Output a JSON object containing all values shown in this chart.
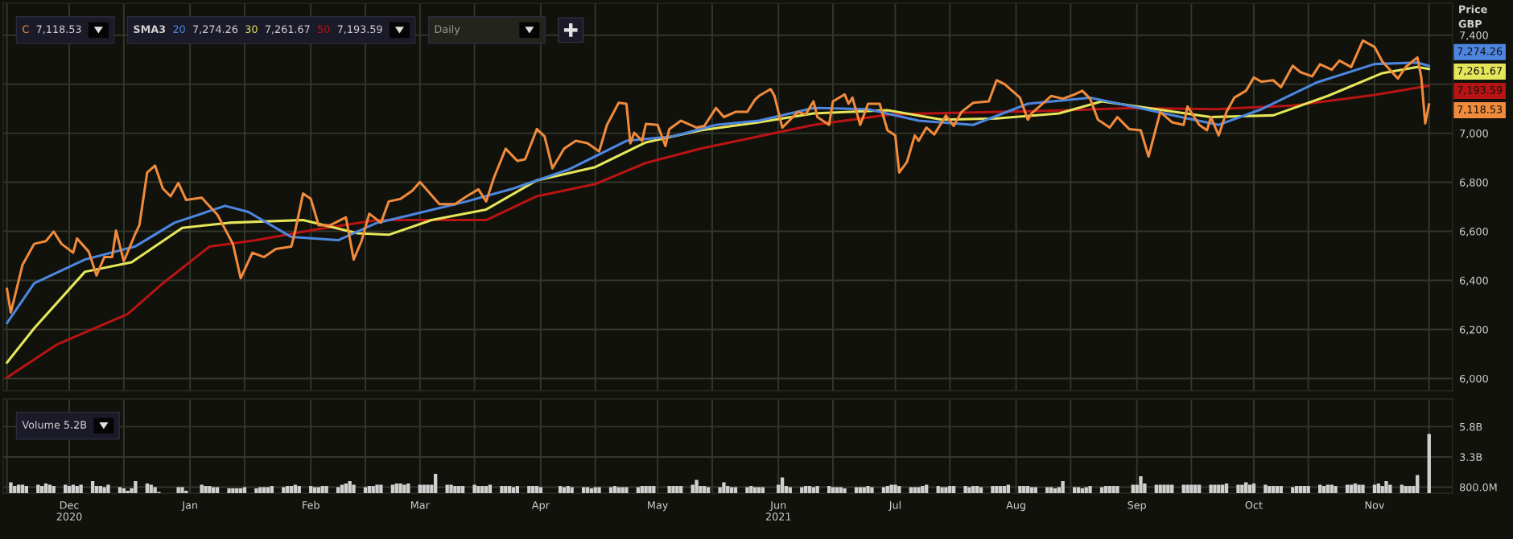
{
  "chart_data": [
    {
      "type": "line",
      "ylabel": "Price\nGBP",
      "legend_title": "SMA3",
      "legend": "top left",
      "line_style": "solid",
      "grid": true,
      "tick_labels": "y",
      "annotations": [
        "Daily",
        "7,118.53",
        "7,274.26",
        "7,261.67",
        "7,193.59"
      ],
      "xlim": [
        "2020-11-14",
        "2021-11-21"
      ],
      "xticks": [
        {
          "value": "2020-11-15",
          "label": null
        },
        {
          "value": "2020-12-01",
          "label": null
        },
        {
          "value": "2020-12-15",
          "label": null
        },
        {
          "value": "2021-01-01",
          "label": null
        },
        {
          "value": "2021-01-15",
          "label": null
        },
        {
          "value": "2021-02-01",
          "label": null
        },
        {
          "value": "2021-02-15",
          "label": null
        },
        {
          "value": "2021-03-01",
          "label": null
        },
        {
          "value": "2021-03-15",
          "label": null
        },
        {
          "value": "2021-04-01",
          "label": null
        },
        {
          "value": "2021-04-15",
          "label": null
        },
        {
          "value": "2021-05-01",
          "label": null
        },
        {
          "value": "2021-05-15",
          "label": null
        },
        {
          "value": "2021-06-01",
          "label": null
        },
        {
          "value": "2021-06-15",
          "label": null
        },
        {
          "value": "2021-07-01",
          "label": null
        },
        {
          "value": "2021-07-15",
          "label": null
        },
        {
          "value": "2021-08-01",
          "label": null
        },
        {
          "value": "2021-08-15",
          "label": null
        },
        {
          "value": "2021-09-01",
          "label": null
        },
        {
          "value": "2021-09-15",
          "label": null
        },
        {
          "value": "2021-10-01",
          "label": null
        },
        {
          "value": "2021-10-15",
          "label": null
        },
        {
          "value": "2021-11-01",
          "label": null
        },
        {
          "value": "2021-11-15",
          "label": null
        }
      ],
      "ylim": [
        5950,
        7530
      ],
      "yticks": [
        {
          "value": 6000,
          "label": "6,000"
        },
        {
          "value": 6200,
          "label": "6,200"
        },
        {
          "value": 6400,
          "label": "6,400"
        },
        {
          "value": 6600,
          "label": "6,600"
        },
        {
          "value": 6800,
          "label": "6,800"
        },
        {
          "value": 7000,
          "label": "7,000"
        },
        {
          "value": 7200,
          "label": null
        },
        {
          "value": 7400,
          "label": "7,400"
        }
      ],
      "series": [
        {
          "name": "C",
          "color": "#f08a3c",
          "x": [
            "2020-11-15",
            "2020-11-16",
            "2020-11-19",
            "2020-11-22",
            "2020-11-25",
            "2020-11-27",
            "2020-11-29",
            "2020-12-02",
            "2020-12-03",
            "2020-12-06",
            "2020-12-08",
            "2020-12-10",
            "2020-12-12",
            "2020-12-13",
            "2020-12-15",
            "2020-12-18",
            "2020-12-19",
            "2020-12-21",
            "2020-12-23",
            "2020-12-25",
            "2020-12-27",
            "2020-12-29",
            "2020-12-31",
            "2021-01-04",
            "2021-01-08",
            "2021-01-12",
            "2021-01-14",
            "2021-01-17",
            "2021-01-20",
            "2021-01-23",
            "2021-01-27",
            "2021-01-28",
            "2021-01-30",
            "2021-02-01",
            "2021-02-03",
            "2021-02-06",
            "2021-02-10",
            "2021-02-12",
            "2021-02-14",
            "2021-02-16",
            "2021-02-19",
            "2021-02-21",
            "2021-02-24",
            "2021-02-27",
            "2021-03-01",
            "2021-03-03",
            "2021-03-06",
            "2021-03-10",
            "2021-03-13",
            "2021-03-16",
            "2021-03-18",
            "2021-03-20",
            "2021-03-23",
            "2021-03-26",
            "2021-03-28",
            "2021-03-31",
            "2021-04-02",
            "2021-04-04",
            "2021-04-07",
            "2021-04-10",
            "2021-04-13",
            "2021-04-16",
            "2021-04-18",
            "2021-04-21",
            "2021-04-23",
            "2021-04-24",
            "2021-04-25",
            "2021-04-27",
            "2021-04-28",
            "2021-05-01",
            "2021-05-03",
            "2021-05-04",
            "2021-05-07",
            "2021-05-11",
            "2021-05-13",
            "2021-05-16",
            "2021-05-18",
            "2021-05-21",
            "2021-05-24",
            "2021-05-26",
            "2021-05-27",
            "2021-05-30",
            "2021-05-31",
            "2021-06-02",
            "2021-06-06",
            "2021-06-08",
            "2021-06-10",
            "2021-06-11",
            "2021-06-14",
            "2021-06-15",
            "2021-06-18",
            "2021-06-19",
            "2021-06-20",
            "2021-06-22",
            "2021-06-24",
            "2021-06-27",
            "2021-06-29",
            "2021-07-01",
            "2021-07-02",
            "2021-07-04",
            "2021-07-06",
            "2021-07-07",
            "2021-07-09",
            "2021-07-11",
            "2021-07-14",
            "2021-07-16",
            "2021-07-18",
            "2021-07-21",
            "2021-07-25",
            "2021-07-27",
            "2021-07-29",
            "2021-07-31",
            "2021-08-02",
            "2021-08-04",
            "2021-08-05",
            "2021-08-07",
            "2021-08-10",
            "2021-08-13",
            "2021-08-16",
            "2021-08-18",
            "2021-08-20",
            "2021-08-22",
            "2021-08-25",
            "2021-08-27",
            "2021-08-30",
            "2021-09-02",
            "2021-09-04",
            "2021-09-07",
            "2021-09-10",
            "2021-09-13",
            "2021-09-14",
            "2021-09-17",
            "2021-09-19",
            "2021-09-20",
            "2021-09-22",
            "2021-09-24",
            "2021-09-26",
            "2021-09-29",
            "2021-10-01",
            "2021-10-03",
            "2021-10-06",
            "2021-10-08",
            "2021-10-11",
            "2021-10-13",
            "2021-10-16",
            "2021-10-18",
            "2021-10-21",
            "2021-10-23",
            "2021-10-26",
            "2021-10-29",
            "2021-11-01",
            "2021-11-03",
            "2021-11-07",
            "2021-11-09",
            "2021-11-12",
            "2021-11-13",
            "2021-11-14",
            "2021-11-15"
          ],
          "values": [
            6366,
            6269,
            6463,
            6549,
            6560,
            6599,
            6549,
            6513,
            6571,
            6517,
            6420,
            6495,
            6495,
            6603,
            6478,
            6592,
            6625,
            6840,
            6868,
            6775,
            6743,
            6797,
            6728,
            6737,
            6668,
            6549,
            6409,
            6513,
            6495,
            6528,
            6538,
            6603,
            6754,
            6732,
            6625,
            6625,
            6657,
            6485,
            6560,
            6672,
            6635,
            6722,
            6732,
            6765,
            6801,
            6765,
            6711,
            6711,
            6743,
            6771,
            6722,
            6819,
            6937,
            6887,
            6894,
            7017,
            6987,
            6857,
            6937,
            6969,
            6959,
            6926,
            7034,
            7124,
            7120,
            6959,
            7002,
            6969,
            7038,
            7034,
            6948,
            7017,
            7051,
            7023,
            7030,
            7103,
            7066,
            7087,
            7087,
            7137,
            7152,
            7180,
            7152,
            7023,
            7087,
            7077,
            7130,
            7066,
            7034,
            7130,
            7158,
            7120,
            7145,
            7034,
            7120,
            7120,
            7012,
            6991,
            6840,
            6883,
            6991,
            6969,
            7023,
            6995,
            7072,
            7030,
            7087,
            7124,
            7130,
            7216,
            7201,
            7173,
            7145,
            7055,
            7081,
            7109,
            7152,
            7141,
            7158,
            7173,
            7141,
            7055,
            7023,
            7066,
            7017,
            7012,
            6905,
            7087,
            7045,
            7034,
            7109,
            7034,
            7012,
            7066,
            6991,
            7087,
            7145,
            7173,
            7227,
            7210,
            7216,
            7188,
            7275,
            7249,
            7232,
            7281,
            7259,
            7296,
            7270,
            7378,
            7352,
            7292,
            7223,
            7270,
            7309,
            7227,
            7040,
            7118.53
          ]
        },
        {
          "name": "20",
          "color": "#4d86e0",
          "x": [
            "2020-11-15",
            "2020-11-22",
            "2020-12-05",
            "2020-12-18",
            "2020-12-28",
            "2021-01-10",
            "2021-01-16",
            "2021-01-27",
            "2021-02-08",
            "2021-02-18",
            "2021-02-27",
            "2021-03-13",
            "2021-03-25",
            "2021-04-08",
            "2021-04-23",
            "2021-05-05",
            "2021-05-16",
            "2021-05-27",
            "2021-06-10",
            "2021-06-24",
            "2021-07-07",
            "2021-07-21",
            "2021-08-04",
            "2021-08-20",
            "2021-08-31",
            "2021-09-14",
            "2021-09-22",
            "2021-10-03",
            "2021-10-17",
            "2021-11-01",
            "2021-11-12",
            "2021-11-15"
          ],
          "values": [
            6226,
            6388,
            6485,
            6539,
            6635,
            6704,
            6679,
            6577,
            6564,
            6635,
            6668,
            6722,
            6775,
            6851,
            6969,
            6987,
            7034,
            7051,
            7103,
            7098,
            7051,
            7034,
            7120,
            7145,
            7109,
            7060,
            7034,
            7098,
            7206,
            7282,
            7288,
            7274.26
          ]
        },
        {
          "name": "30",
          "color": "#e6e65a",
          "x": [
            "2020-11-15",
            "2020-11-22",
            "2020-12-05",
            "2020-12-17",
            "2020-12-30",
            "2021-01-11",
            "2021-01-30",
            "2021-02-13",
            "2021-02-21",
            "2021-03-04",
            "2021-03-18",
            "2021-03-31",
            "2021-04-15",
            "2021-04-28",
            "2021-05-12",
            "2021-05-27",
            "2021-06-10",
            "2021-06-29",
            "2021-07-13",
            "2021-07-27",
            "2021-08-12",
            "2021-08-23",
            "2021-09-06",
            "2021-09-20",
            "2021-10-06",
            "2021-10-20",
            "2021-11-03",
            "2021-11-12",
            "2021-11-15"
          ],
          "values": [
            6065,
            6205,
            6435,
            6474,
            6614,
            6635,
            6646,
            6592,
            6586,
            6646,
            6689,
            6808,
            6862,
            6963,
            7012,
            7045,
            7081,
            7094,
            7055,
            7060,
            7081,
            7130,
            7098,
            7066,
            7073,
            7152,
            7245,
            7270,
            7261.67
          ]
        },
        {
          "name": "50",
          "color": "#b81414",
          "x": [
            "2020-11-15",
            "2020-11-28",
            "2020-12-16",
            "2020-12-25",
            "2021-01-06",
            "2021-01-18",
            "2021-02-02",
            "2021-02-18",
            "2021-03-04",
            "2021-03-18",
            "2021-03-31",
            "2021-04-15",
            "2021-04-28",
            "2021-05-12",
            "2021-05-27",
            "2021-06-10",
            "2021-06-30",
            "2021-07-21",
            "2021-08-11",
            "2021-08-31",
            "2021-09-21",
            "2021-10-11",
            "2021-11-01",
            "2021-11-15"
          ],
          "values": [
            6004,
            6140,
            6263,
            6388,
            6538,
            6564,
            6607,
            6646,
            6646,
            6646,
            6743,
            6793,
            6879,
            6937,
            6987,
            7034,
            7077,
            7085,
            7092,
            7103,
            7098,
            7113,
            7156,
            7193.59
          ]
        }
      ]
    },
    {
      "type": "bar",
      "title": "Volume 5.2B",
      "color": "#cfcfcf",
      "grid": true,
      "xlim": [
        "2020-11-14",
        "2021-11-21"
      ],
      "xticks": [
        {
          "value": "2020-11-15",
          "label": null
        },
        {
          "value": "2020-12-01",
          "label": "Dec\n2020"
        },
        {
          "value": "2020-12-15",
          "label": null
        },
        {
          "value": "2021-01-01",
          "label": "Jan"
        },
        {
          "value": "2021-01-15",
          "label": null
        },
        {
          "value": "2021-02-01",
          "label": "Feb"
        },
        {
          "value": "2021-02-15",
          "label": null
        },
        {
          "value": "2021-03-01",
          "label": "Mar"
        },
        {
          "value": "2021-03-15",
          "label": null
        },
        {
          "value": "2021-04-01",
          "label": "Apr"
        },
        {
          "value": "2021-04-15",
          "label": null
        },
        {
          "value": "2021-05-01",
          "label": "May"
        },
        {
          "value": "2021-05-15",
          "label": null
        },
        {
          "value": "2021-06-01",
          "label": "Jun\n2021"
        },
        {
          "value": "2021-06-15",
          "label": null
        },
        {
          "value": "2021-07-01",
          "label": "Jul"
        },
        {
          "value": "2021-07-15",
          "label": null
        },
        {
          "value": "2021-08-01",
          "label": "Aug"
        },
        {
          "value": "2021-08-15",
          "label": null
        },
        {
          "value": "2021-09-01",
          "label": "Sep"
        },
        {
          "value": "2021-09-15",
          "label": null
        },
        {
          "value": "2021-10-01",
          "label": "Oct"
        },
        {
          "value": "2021-10-15",
          "label": null
        },
        {
          "value": "2021-11-01",
          "label": "Nov"
        },
        {
          "value": "2021-11-15",
          "label": null
        }
      ],
      "ylim": [
        300000000.0,
        8100000000.0
      ],
      "yticks": [
        {
          "value": 800000000.0,
          "label": "800.0M"
        },
        {
          "value": 3300000000.0,
          "label": "3.3B"
        },
        {
          "value": 5800000000.0,
          "label": "5.8B"
        }
      ],
      "x": [
        "2020-11-16",
        "2020-11-17",
        "2020-11-18",
        "2020-11-19",
        "2020-11-20",
        "2020-11-23",
        "2020-11-24",
        "2020-11-25",
        "2020-11-26",
        "2020-11-27",
        "2020-11-30",
        "2020-12-01",
        "2020-12-02",
        "2020-12-03",
        "2020-12-04",
        "2020-12-07",
        "2020-12-08",
        "2020-12-09",
        "2020-12-10",
        "2020-12-11",
        "2020-12-14",
        "2020-12-15",
        "2020-12-16",
        "2020-12-17",
        "2020-12-18",
        "2020-12-21",
        "2020-12-22",
        "2020-12-23",
        "2020-12-24",
        "2020-12-29",
        "2020-12-30",
        "2020-12-31",
        "2021-01-04",
        "2021-01-05",
        "2021-01-06",
        "2021-01-07",
        "2021-01-08",
        "2021-01-11",
        "2021-01-12",
        "2021-01-13",
        "2021-01-14",
        "2021-01-15",
        "2021-01-18",
        "2021-01-19",
        "2021-01-20",
        "2021-01-21",
        "2021-01-22",
        "2021-01-25",
        "2021-01-26",
        "2021-01-27",
        "2021-01-28",
        "2021-01-29",
        "2021-02-01",
        "2021-02-02",
        "2021-02-03",
        "2021-02-04",
        "2021-02-05",
        "2021-02-08",
        "2021-02-09",
        "2021-02-10",
        "2021-02-11",
        "2021-02-12",
        "2021-02-15",
        "2021-02-16",
        "2021-02-17",
        "2021-02-18",
        "2021-02-19",
        "2021-02-22",
        "2021-02-23",
        "2021-02-24",
        "2021-02-25",
        "2021-02-26",
        "2021-03-01",
        "2021-03-02",
        "2021-03-03",
        "2021-03-04",
        "2021-03-05",
        "2021-03-08",
        "2021-03-09",
        "2021-03-10",
        "2021-03-11",
        "2021-03-12",
        "2021-03-15",
        "2021-03-16",
        "2021-03-17",
        "2021-03-18",
        "2021-03-19",
        "2021-03-22",
        "2021-03-23",
        "2021-03-24",
        "2021-03-25",
        "2021-03-26",
        "2021-03-29",
        "2021-03-30",
        "2021-03-31",
        "2021-04-01",
        "2021-04-06",
        "2021-04-07",
        "2021-04-08",
        "2021-04-09",
        "2021-04-12",
        "2021-04-13",
        "2021-04-14",
        "2021-04-15",
        "2021-04-16",
        "2021-04-19",
        "2021-04-20",
        "2021-04-21",
        "2021-04-22",
        "2021-04-23",
        "2021-04-26",
        "2021-04-27",
        "2021-04-28",
        "2021-04-29",
        "2021-04-30",
        "2021-05-04",
        "2021-05-05",
        "2021-05-06",
        "2021-05-07",
        "2021-05-10",
        "2021-05-11",
        "2021-05-12",
        "2021-05-13",
        "2021-05-14",
        "2021-05-17",
        "2021-05-18",
        "2021-05-19",
        "2021-05-20",
        "2021-05-21",
        "2021-05-24",
        "2021-05-25",
        "2021-05-26",
        "2021-05-27",
        "2021-05-28",
        "2021-06-01",
        "2021-06-02",
        "2021-06-03",
        "2021-06-04",
        "2021-06-07",
        "2021-06-08",
        "2021-06-09",
        "2021-06-10",
        "2021-06-11",
        "2021-06-14",
        "2021-06-15",
        "2021-06-16",
        "2021-06-17",
        "2021-06-18",
        "2021-06-21",
        "2021-06-22",
        "2021-06-23",
        "2021-06-24",
        "2021-06-25",
        "2021-06-28",
        "2021-06-29",
        "2021-06-30",
        "2021-07-01",
        "2021-07-02",
        "2021-07-05",
        "2021-07-06",
        "2021-07-07",
        "2021-07-08",
        "2021-07-09",
        "2021-07-12",
        "2021-07-13",
        "2021-07-14",
        "2021-07-15",
        "2021-07-16",
        "2021-07-19",
        "2021-07-20",
        "2021-07-21",
        "2021-07-22",
        "2021-07-23",
        "2021-07-26",
        "2021-07-27",
        "2021-07-28",
        "2021-07-29",
        "2021-07-30",
        "2021-08-02",
        "2021-08-03",
        "2021-08-04",
        "2021-08-05",
        "2021-08-06",
        "2021-08-09",
        "2021-08-10",
        "2021-08-11",
        "2021-08-12",
        "2021-08-13",
        "2021-08-16",
        "2021-08-17",
        "2021-08-18",
        "2021-08-19",
        "2021-08-20",
        "2021-08-23",
        "2021-08-24",
        "2021-08-25",
        "2021-08-26",
        "2021-08-27",
        "2021-08-31",
        "2021-09-01",
        "2021-09-02",
        "2021-09-03",
        "2021-09-06",
        "2021-09-07",
        "2021-09-08",
        "2021-09-09",
        "2021-09-10",
        "2021-09-13",
        "2021-09-14",
        "2021-09-15",
        "2021-09-16",
        "2021-09-17",
        "2021-09-20",
        "2021-09-21",
        "2021-09-22",
        "2021-09-23",
        "2021-09-24",
        "2021-09-27",
        "2021-09-28",
        "2021-09-29",
        "2021-09-30",
        "2021-10-01",
        "2021-10-04",
        "2021-10-05",
        "2021-10-06",
        "2021-10-07",
        "2021-10-08",
        "2021-10-11",
        "2021-10-12",
        "2021-10-13",
        "2021-10-14",
        "2021-10-15",
        "2021-10-18",
        "2021-10-19",
        "2021-10-20",
        "2021-10-21",
        "2021-10-22",
        "2021-10-25",
        "2021-10-26",
        "2021-10-27",
        "2021-10-28",
        "2021-10-29",
        "2021-11-01",
        "2021-11-02",
        "2021-11-03",
        "2021-11-04",
        "2021-11-05",
        "2021-11-08",
        "2021-11-09",
        "2021-11-10",
        "2021-11-11",
        "2021-11-12",
        "2021-11-15"
      ],
      "values": [
        1200000000.0,
        900000000.0,
        1000000000.0,
        1000000000.0,
        900000000.0,
        1000000000.0,
        900000000.0,
        1100000000.0,
        1000000000.0,
        900000000.0,
        1000000000.0,
        900000000.0,
        1000000000.0,
        900000000.0,
        1000000000.0,
        1300000000.0,
        900000000.0,
        900000000.0,
        800000000.0,
        1000000000.0,
        800000000.0,
        700000000.0,
        500000000.0,
        700000000.0,
        1300000000.0,
        1100000000.0,
        1000000000.0,
        800000000.0,
        400000000.0,
        800000000.0,
        800000000.0,
        500000000.0,
        1000000000.0,
        900000000.0,
        900000000.0,
        800000000.0,
        800000000.0,
        700000000.0,
        700000000.0,
        700000000.0,
        700000000.0,
        800000000.0,
        700000000.0,
        800000000.0,
        800000000.0,
        800000000.0,
        900000000.0,
        800000000.0,
        900000000.0,
        900000000.0,
        1000000000.0,
        900000000.0,
        900000000.0,
        800000000.0,
        800000000.0,
        900000000.0,
        900000000.0,
        800000000.0,
        1000000000.0,
        1100000000.0,
        1300000000.0,
        1000000000.0,
        800000000.0,
        900000000.0,
        900000000.0,
        1000000000.0,
        1000000000.0,
        1000000000.0,
        1100000000.0,
        1100000000.0,
        1000000000.0,
        1100000000.0,
        1000000000.0,
        1000000000.0,
        1000000000.0,
        1000000000.0,
        1900000000.0,
        1000000000.0,
        1000000000.0,
        900000000.0,
        900000000.0,
        900000000.0,
        1000000000.0,
        900000000.0,
        900000000.0,
        900000000.0,
        1000000000.0,
        900000000.0,
        900000000.0,
        900000000.0,
        800000000.0,
        900000000.0,
        900000000.0,
        900000000.0,
        900000000.0,
        800000000.0,
        900000000.0,
        800000000.0,
        900000000.0,
        800000000.0,
        800000000.0,
        800000000.0,
        700000000.0,
        800000000.0,
        800000000.0,
        800000000.0,
        900000000.0,
        800000000.0,
        800000000.0,
        800000000.0,
        800000000.0,
        900000000.0,
        900000000.0,
        900000000.0,
        900000000.0,
        900000000.0,
        900000000.0,
        900000000.0,
        900000000.0,
        1000000000.0,
        1400000000.0,
        900000000.0,
        900000000.0,
        800000000.0,
        800000000.0,
        1200000000.0,
        900000000.0,
        800000000.0,
        800000000.0,
        800000000.0,
        900000000.0,
        800000000.0,
        800000000.0,
        800000000.0,
        1000000000.0,
        1600000000.0,
        900000000.0,
        800000000.0,
        800000000.0,
        900000000.0,
        900000000.0,
        800000000.0,
        900000000.0,
        900000000.0,
        800000000.0,
        800000000.0,
        800000000.0,
        700000000.0,
        800000000.0,
        800000000.0,
        800000000.0,
        900000000.0,
        800000000.0,
        800000000.0,
        900000000.0,
        1000000000.0,
        1000000000.0,
        900000000.0,
        800000000.0,
        800000000.0,
        800000000.0,
        900000000.0,
        1000000000.0,
        900000000.0,
        800000000.0,
        800000000.0,
        900000000.0,
        900000000.0,
        900000000.0,
        800000000.0,
        900000000.0,
        900000000.0,
        800000000.0,
        900000000.0,
        900000000.0,
        900000000.0,
        900000000.0,
        1000000000.0,
        900000000.0,
        900000000.0,
        900000000.0,
        800000000.0,
        800000000.0,
        800000000.0,
        800000000.0,
        700000000.0,
        800000000.0,
        1300000000.0,
        800000000.0,
        800000000.0,
        700000000.0,
        800000000.0,
        900000000.0,
        800000000.0,
        900000000.0,
        900000000.0,
        900000000.0,
        900000000.0,
        1000000000.0,
        1000000000.0,
        1700000000.0,
        1100000000.0,
        1000000000.0,
        1000000000.0,
        1000000000.0,
        1000000000.0,
        1000000000.0,
        1000000000.0,
        1000000000.0,
        1000000000.0,
        1000000000.0,
        1000000000.0,
        1000000000.0,
        1000000000.0,
        1000000000.0,
        1000000000.0,
        1100000000.0,
        1000000000.0,
        1000000000.0,
        1200000000.0,
        1000000000.0,
        1100000000.0,
        1000000000.0,
        900000000.0,
        900000000.0,
        900000000.0,
        900000000.0,
        800000000.0,
        900000000.0,
        900000000.0,
        900000000.0,
        900000000.0,
        1000000000.0,
        900000000.0,
        1000000000.0,
        1000000000.0,
        900000000.0,
        1000000000.0,
        1000000000.0,
        1100000000.0,
        1000000000.0,
        1000000000.0,
        1000000000.0,
        1100000000.0,
        900000000.0,
        1300000000.0,
        1000000000.0,
        1000000000.0,
        900000000.0,
        900000000.0,
        900000000.0,
        1800000000.0,
        5200000000.0
      ]
    }
  ]
}
